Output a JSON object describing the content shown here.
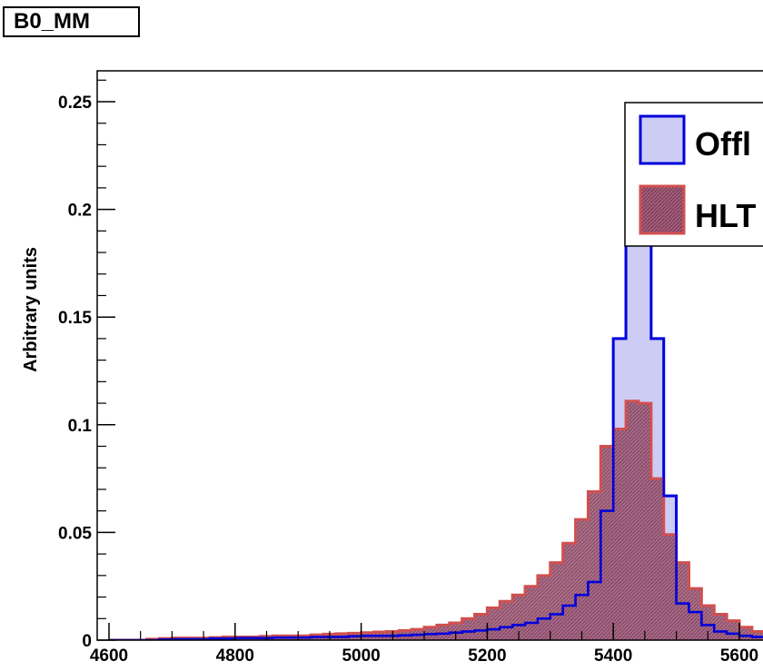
{
  "page_title": "B0_MM",
  "chart_data": {
    "type": "histogram",
    "title": "B0_MM",
    "xlabel": "",
    "ylabel": "Arbitrary units",
    "xlim": [
      4600,
      5620
    ],
    "ylim": [
      0,
      0.265
    ],
    "grid": false,
    "legend_position": "top-right",
    "x_ticks": [
      4600,
      4800,
      5000,
      5200,
      5400,
      5600
    ],
    "x_tick_labels": [
      "4600",
      "4800",
      "5000",
      "5200",
      "5400",
      "5600"
    ],
    "y_ticks": [
      0,
      0.05,
      0.1,
      0.15,
      0.2,
      0.25
    ],
    "y_tick_labels": [
      "0",
      "0.05",
      "0.1",
      "0.15",
      "0.2",
      "0.25"
    ],
    "bin_start": 4600,
    "bin_width": 20,
    "series": [
      {
        "name": "Offl",
        "fill": "#ccccf5",
        "line": "#0000dd",
        "values": [
          0,
          0,
          0,
          0,
          0.0003,
          0.0005,
          0.0005,
          0.0005,
          0.0008,
          0.0008,
          0.001,
          0.001,
          0.001,
          0.0012,
          0.0012,
          0.0012,
          0.0015,
          0.0015,
          0.0015,
          0.0018,
          0.002,
          0.002,
          0.002,
          0.0022,
          0.0025,
          0.0028,
          0.003,
          0.0035,
          0.004,
          0.0045,
          0.005,
          0.006,
          0.007,
          0.008,
          0.01,
          0.012,
          0.016,
          0.021,
          0.027,
          0.06,
          0.14,
          0.215,
          0.222,
          0.14,
          0.067,
          0.017,
          0.013,
          0.007,
          0.004,
          0.003,
          0.002,
          0.0015
        ]
      },
      {
        "name": "HLT",
        "fill": "#a0607a",
        "line": "#d05050",
        "values": [
          0,
          0,
          0,
          0.0005,
          0.0008,
          0.001,
          0.001,
          0.001,
          0.0012,
          0.0015,
          0.0015,
          0.0015,
          0.0018,
          0.002,
          0.002,
          0.002,
          0.0025,
          0.0028,
          0.003,
          0.0032,
          0.0035,
          0.0038,
          0.004,
          0.0045,
          0.005,
          0.006,
          0.007,
          0.008,
          0.01,
          0.012,
          0.015,
          0.018,
          0.021,
          0.025,
          0.03,
          0.036,
          0.045,
          0.056,
          0.069,
          0.09,
          0.098,
          0.111,
          0.11,
          0.075,
          0.049,
          0.036,
          0.024,
          0.016,
          0.012,
          0.009,
          0.006,
          0.004
        ]
      }
    ]
  }
}
